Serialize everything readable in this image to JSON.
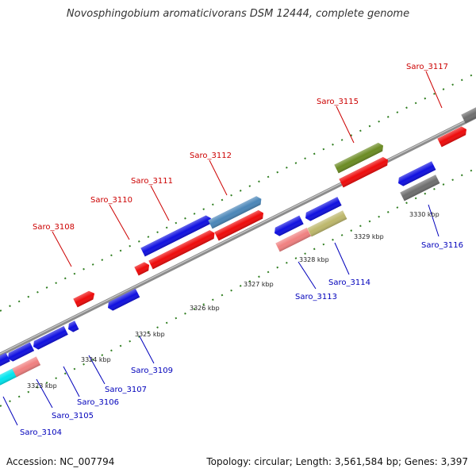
{
  "title": "Novosphingobium aromaticivorans DSM 12444, complete genome",
  "footer": {
    "accession": "Accession: NC_007794",
    "summary": "Topology: circular; Length: 3,561,584 bp; Genes: 3,397"
  },
  "colors": {
    "backbone": "#8c8c8c",
    "tick_dots": "#2e7d1e",
    "label_upper": "#cc0000",
    "label_lower": "#0000bb",
    "gene_blue": "#1010e0",
    "gene_red": "#ee0b0b",
    "gene_olive": "#6b8b23",
    "gene_steel": "#4a86b8",
    "gene_pink": "#f08080",
    "gene_khaki": "#bdb76b",
    "gene_gray": "#6e6e6e",
    "gene_cyan": "#00e5ee"
  },
  "scale_labels": [
    "3323 kbp",
    "3324 kbp",
    "3325 kbp",
    "3326 kbp",
    "3327 kbp",
    "3328 kbp",
    "3329 kbp",
    "3330 kbp"
  ],
  "gene_labels_upper": [
    "Saro_3108",
    "Saro_3110",
    "Saro_3111",
    "Saro_3112",
    "Saro_3115",
    "Saro_3117"
  ],
  "gene_labels_lower": [
    "Saro_3104",
    "Saro_3105",
    "Saro_3106",
    "Saro_3107",
    "Saro_3109",
    "Saro_3113",
    "Saro_3114",
    "Saro_3116"
  ]
}
